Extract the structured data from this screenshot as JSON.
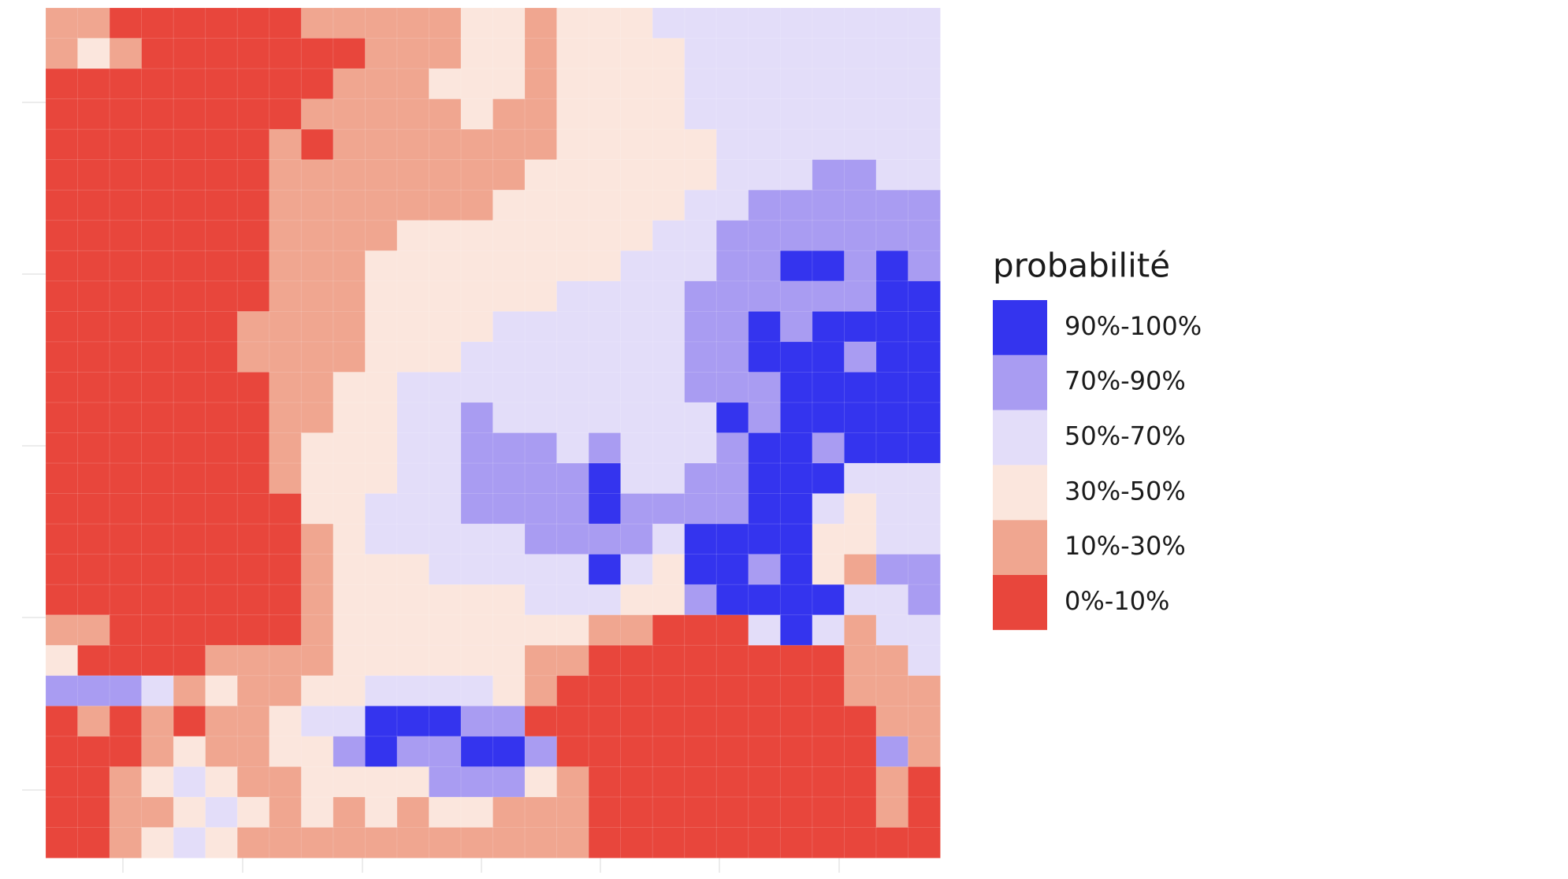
{
  "map": {
    "legend": {
      "title": "probabilité",
      "items": [
        {
          "label": "0%-10%",
          "color": "#e8463c"
        },
        {
          "label": "10%-30%",
          "color": "#f0a690"
        },
        {
          "label": "30%-50%",
          "color": "#fbe6dd"
        },
        {
          "label": "50%-70%",
          "color": "#e3ddf9"
        },
        {
          "label": "70%-90%",
          "color": "#a99cf2"
        },
        {
          "label": "90%-100%",
          "color": "#3434ee"
        }
      ]
    },
    "grid": [
      [
        1,
        1,
        0,
        0,
        0,
        0,
        0,
        0,
        1,
        1,
        1,
        1,
        1,
        2,
        2,
        1,
        2,
        2,
        2,
        3,
        3,
        3,
        3,
        3,
        3,
        3,
        3,
        3
      ],
      [
        1,
        2,
        1,
        0,
        0,
        0,
        0,
        0,
        0,
        0,
        1,
        1,
        1,
        2,
        2,
        1,
        2,
        2,
        2,
        2,
        3,
        3,
        3,
        3,
        3,
        3,
        3,
        3
      ],
      [
        0,
        0,
        0,
        0,
        0,
        0,
        0,
        0,
        0,
        1,
        1,
        1,
        2,
        2,
        2,
        1,
        2,
        2,
        2,
        2,
        3,
        3,
        3,
        3,
        3,
        3,
        3,
        3
      ],
      [
        0,
        0,
        0,
        0,
        0,
        0,
        0,
        0,
        1,
        1,
        1,
        1,
        1,
        2,
        1,
        1,
        2,
        2,
        2,
        2,
        3,
        3,
        3,
        3,
        3,
        3,
        3,
        3
      ],
      [
        0,
        0,
        0,
        0,
        0,
        0,
        0,
        1,
        0,
        1,
        1,
        1,
        1,
        1,
        1,
        1,
        2,
        2,
        2,
        2,
        2,
        3,
        3,
        3,
        3,
        3,
        3,
        3
      ],
      [
        0,
        0,
        0,
        0,
        0,
        0,
        0,
        1,
        1,
        1,
        1,
        1,
        1,
        1,
        1,
        2,
        2,
        2,
        2,
        2,
        2,
        3,
        3,
        3,
        4,
        4,
        3,
        3
      ],
      [
        0,
        0,
        0,
        0,
        0,
        0,
        0,
        1,
        1,
        1,
        1,
        1,
        1,
        1,
        2,
        2,
        2,
        2,
        2,
        2,
        3,
        3,
        4,
        4,
        4,
        4,
        4,
        4
      ],
      [
        0,
        0,
        0,
        0,
        0,
        0,
        0,
        1,
        1,
        1,
        1,
        2,
        2,
        2,
        2,
        2,
        2,
        2,
        2,
        3,
        3,
        4,
        4,
        4,
        4,
        4,
        4,
        4
      ],
      [
        0,
        0,
        0,
        0,
        0,
        0,
        0,
        1,
        1,
        1,
        2,
        2,
        2,
        2,
        2,
        2,
        2,
        2,
        3,
        3,
        3,
        4,
        4,
        5,
        5,
        4,
        5,
        4
      ],
      [
        0,
        0,
        0,
        0,
        0,
        0,
        0,
        1,
        1,
        1,
        2,
        2,
        2,
        2,
        2,
        2,
        3,
        3,
        3,
        3,
        4,
        4,
        4,
        4,
        4,
        4,
        5,
        5
      ],
      [
        0,
        0,
        0,
        0,
        0,
        0,
        1,
        1,
        1,
        1,
        2,
        2,
        2,
        2,
        3,
        3,
        3,
        3,
        3,
        3,
        4,
        4,
        5,
        4,
        5,
        5,
        5,
        5
      ],
      [
        0,
        0,
        0,
        0,
        0,
        0,
        1,
        1,
        1,
        1,
        2,
        2,
        2,
        3,
        3,
        3,
        3,
        3,
        3,
        3,
        4,
        4,
        5,
        5,
        5,
        4,
        5,
        5
      ],
      [
        0,
        0,
        0,
        0,
        0,
        0,
        0,
        1,
        1,
        2,
        2,
        3,
        3,
        3,
        3,
        3,
        3,
        3,
        3,
        3,
        4,
        4,
        4,
        5,
        5,
        5,
        5,
        5
      ],
      [
        0,
        0,
        0,
        0,
        0,
        0,
        0,
        1,
        1,
        2,
        2,
        3,
        3,
        4,
        3,
        3,
        3,
        3,
        3,
        3,
        3,
        5,
        4,
        5,
        5,
        5,
        5,
        5
      ],
      [
        0,
        0,
        0,
        0,
        0,
        0,
        0,
        1,
        2,
        2,
        2,
        3,
        3,
        4,
        4,
        4,
        3,
        4,
        3,
        3,
        3,
        4,
        5,
        5,
        4,
        5,
        5,
        5
      ],
      [
        0,
        0,
        0,
        0,
        0,
        0,
        0,
        1,
        2,
        2,
        2,
        3,
        3,
        4,
        4,
        4,
        4,
        5,
        3,
        3,
        4,
        4,
        5,
        5,
        5,
        3,
        3,
        3
      ],
      [
        0,
        0,
        0,
        0,
        0,
        0,
        0,
        0,
        2,
        2,
        3,
        3,
        3,
        4,
        4,
        4,
        4,
        5,
        4,
        4,
        4,
        4,
        5,
        5,
        3,
        2,
        3,
        3
      ],
      [
        0,
        0,
        0,
        0,
        0,
        0,
        0,
        0,
        1,
        2,
        3,
        3,
        3,
        3,
        3,
        4,
        4,
        4,
        4,
        3,
        5,
        5,
        5,
        5,
        2,
        2,
        3,
        3
      ],
      [
        0,
        0,
        0,
        0,
        0,
        0,
        0,
        0,
        1,
        2,
        2,
        2,
        3,
        3,
        3,
        3,
        3,
        5,
        3,
        2,
        5,
        5,
        4,
        5,
        2,
        1,
        4,
        4
      ],
      [
        0,
        0,
        0,
        0,
        0,
        0,
        0,
        0,
        1,
        2,
        2,
        2,
        2,
        2,
        2,
        3,
        3,
        3,
        2,
        2,
        4,
        5,
        5,
        5,
        5,
        3,
        3,
        4
      ],
      [
        1,
        1,
        0,
        0,
        0,
        0,
        0,
        0,
        1,
        2,
        2,
        2,
        2,
        2,
        2,
        2,
        2,
        1,
        1,
        0,
        0,
        0,
        3,
        5,
        3,
        1,
        3,
        3
      ],
      [
        2,
        0,
        0,
        0,
        0,
        1,
        1,
        1,
        1,
        2,
        2,
        2,
        2,
        2,
        2,
        1,
        1,
        0,
        0,
        0,
        0,
        0,
        0,
        0,
        0,
        1,
        1,
        3
      ],
      [
        4,
        4,
        4,
        3,
        1,
        2,
        1,
        1,
        2,
        2,
        3,
        3,
        3,
        3,
        2,
        1,
        0,
        0,
        0,
        0,
        0,
        0,
        0,
        0,
        0,
        1,
        1,
        1
      ],
      [
        0,
        1,
        0,
        1,
        0,
        1,
        1,
        2,
        3,
        3,
        5,
        5,
        5,
        4,
        4,
        0,
        0,
        0,
        0,
        0,
        0,
        0,
        0,
        0,
        0,
        0,
        1,
        1
      ],
      [
        0,
        0,
        0,
        1,
        2,
        1,
        1,
        2,
        2,
        4,
        5,
        4,
        4,
        5,
        5,
        4,
        0,
        0,
        0,
        0,
        0,
        0,
        0,
        0,
        0,
        0,
        4,
        1
      ],
      [
        0,
        0,
        1,
        2,
        3,
        2,
        1,
        1,
        2,
        2,
        2,
        2,
        4,
        4,
        4,
        2,
        1,
        0,
        0,
        0,
        0,
        0,
        0,
        0,
        0,
        0,
        1,
        0
      ],
      [
        0,
        0,
        1,
        1,
        2,
        3,
        2,
        1,
        2,
        1,
        2,
        1,
        2,
        2,
        1,
        1,
        1,
        0,
        0,
        0,
        0,
        0,
        0,
        0,
        0,
        0,
        1,
        0
      ],
      [
        0,
        0,
        1,
        2,
        3,
        2,
        1,
        1,
        1,
        1,
        1,
        1,
        1,
        1,
        1,
        1,
        1,
        0,
        0,
        0,
        0,
        0,
        0,
        0,
        0,
        0,
        0,
        0
      ]
    ]
  }
}
